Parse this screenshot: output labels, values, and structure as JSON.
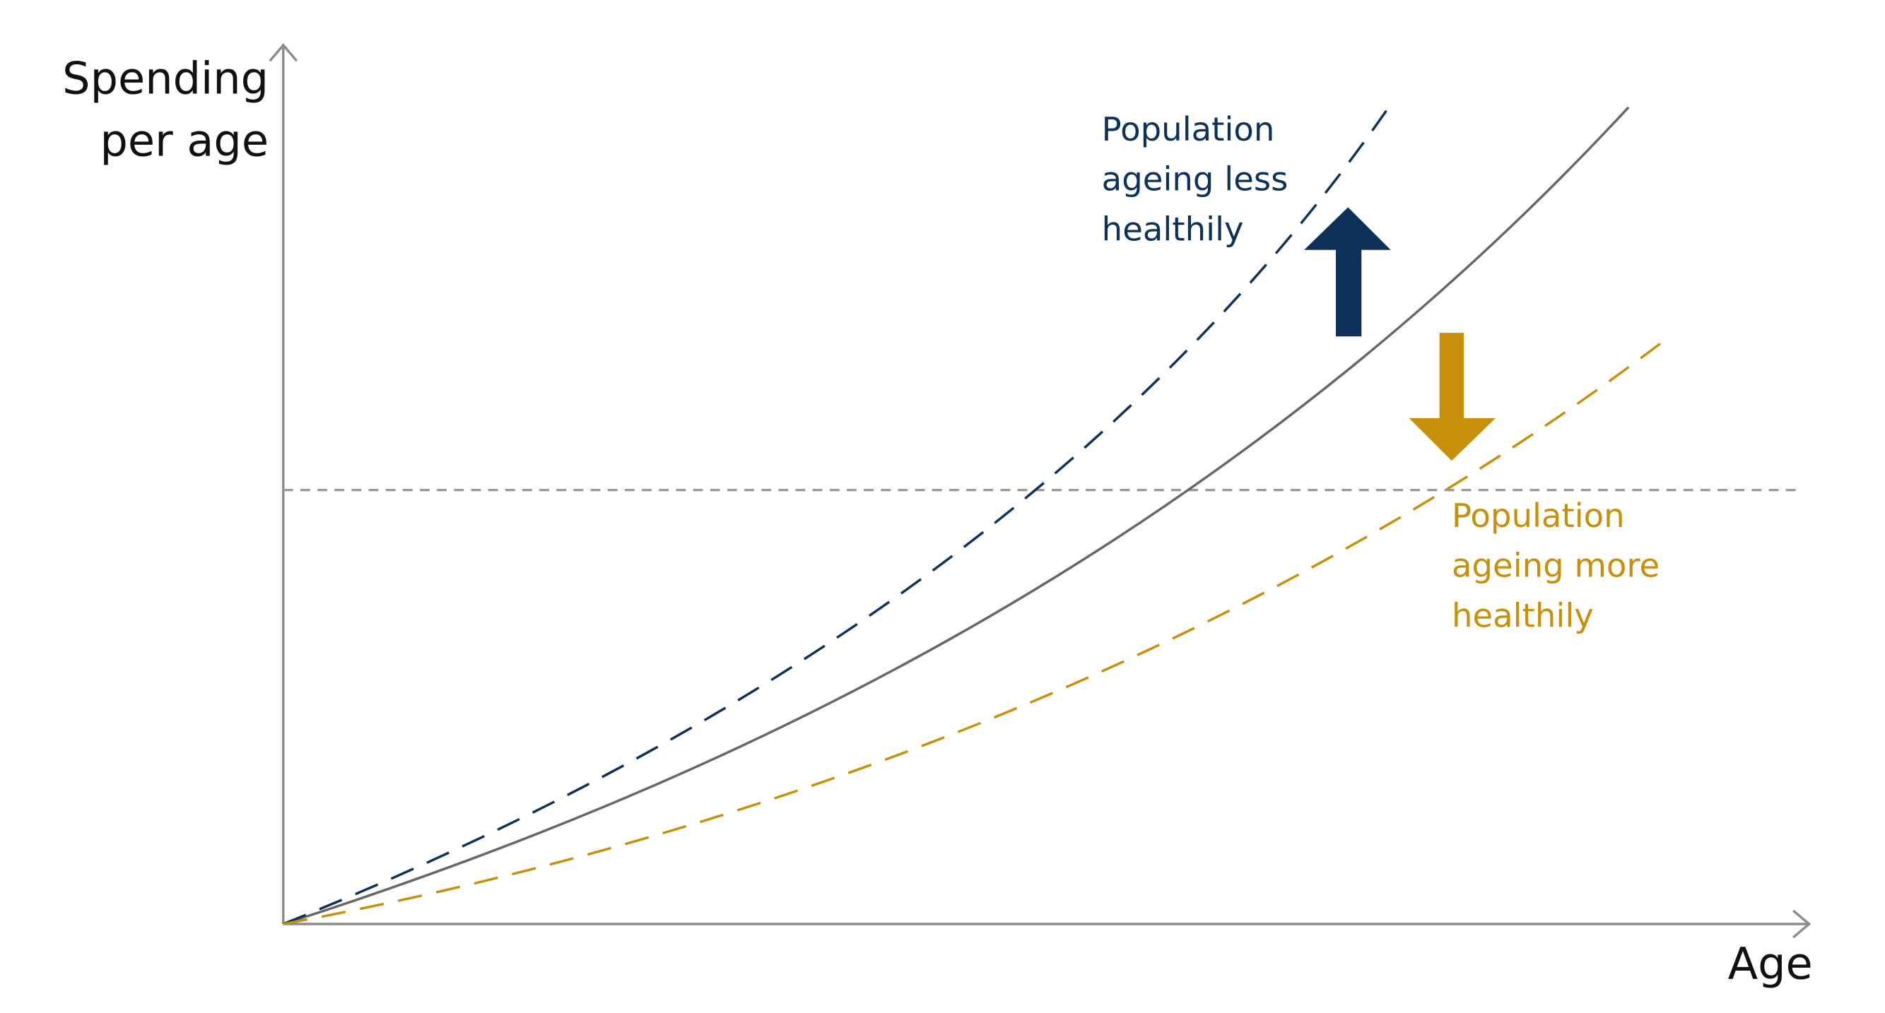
{
  "axes": {
    "y_label": [
      "Spending",
      "per age"
    ],
    "x_label": "Age"
  },
  "annotations": [
    {
      "lines": [
        "Population",
        "ageing less",
        "healthily"
      ]
    },
    {
      "lines": [
        "Population",
        "ageing more",
        "healthily"
      ]
    }
  ]
}
